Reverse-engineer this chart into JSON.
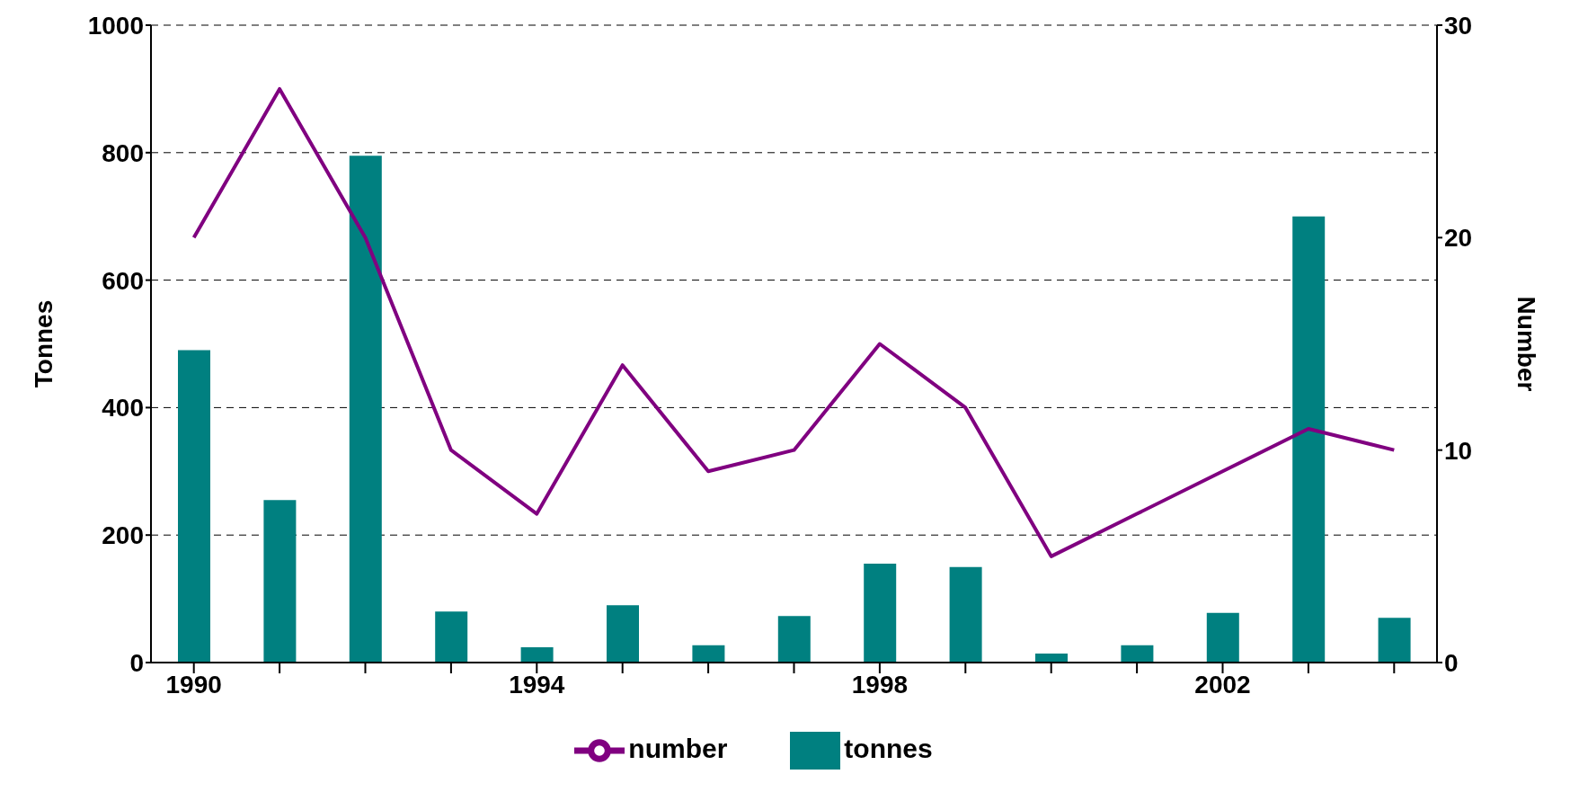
{
  "chart_data": {
    "type": "bar",
    "ylabel": "Tonnes",
    "y2label": "Number",
    "categories": [
      "1990",
      null,
      null,
      null,
      "1994",
      null,
      null,
      null,
      "1998",
      null,
      null,
      null,
      "2002",
      null,
      null
    ],
    "series": [
      {
        "name": "tonnes",
        "color": "#008080",
        "values": [
          490,
          255,
          795,
          80,
          24,
          90,
          27,
          73,
          155,
          150,
          14,
          27,
          78,
          700,
          70
        ]
      },
      {
        "name": "number",
        "type": "line",
        "axis": "y2",
        "color": "#800080",
        "values": [
          20,
          27,
          20,
          10,
          7,
          14,
          9,
          10,
          15,
          12,
          5,
          7,
          9,
          11,
          10
        ]
      }
    ],
    "ylim": [
      0,
      1000
    ],
    "yticks": [
      0,
      200,
      400,
      600,
      800,
      1000
    ],
    "y2lim": [
      0,
      30
    ],
    "y2ticks": [
      0,
      10,
      20,
      30
    ],
    "grid": "y",
    "legend": "bottom",
    "marker": "none",
    "line_style": "solid"
  }
}
